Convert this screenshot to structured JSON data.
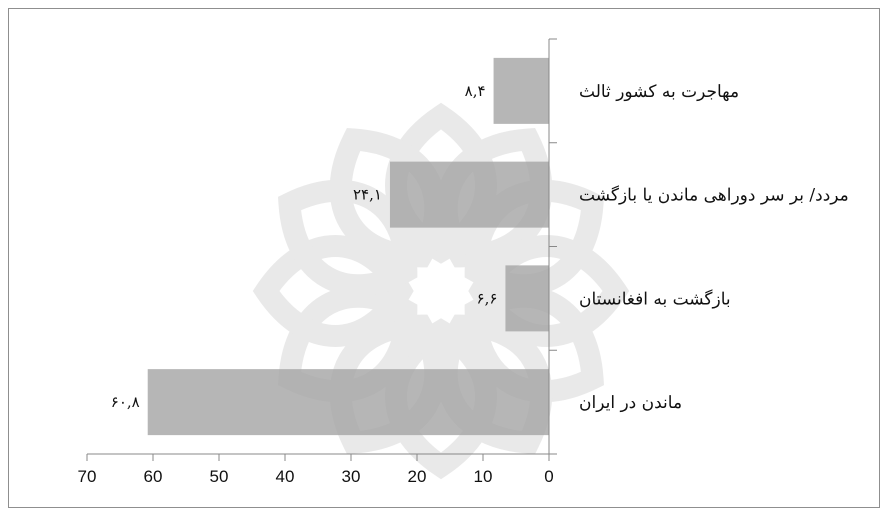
{
  "chart_data": {
    "type": "bar",
    "orientation": "horizontal",
    "x_direction": "reversed",
    "categories": [
      "ماندن در ایران",
      "بازگشت به افغانستان",
      "مردد/ بر سر دوراهی ماندن  یا بازگشت",
      "مهاجرت به کشور ثالث"
    ],
    "values": [
      60.8,
      6.6,
      24.1,
      8.4
    ],
    "value_labels": [
      "۶۰,۸",
      "۶,۶",
      "۲۴,۱",
      "۸,۴"
    ],
    "xlim": [
      0,
      70
    ],
    "xticks": [
      "0",
      "10",
      "20",
      "30",
      "40",
      "50",
      "60",
      "70"
    ],
    "bar_color": "#a6a6a6",
    "grid": false,
    "legend": "none",
    "title": "",
    "xlabel": "",
    "ylabel": ""
  }
}
